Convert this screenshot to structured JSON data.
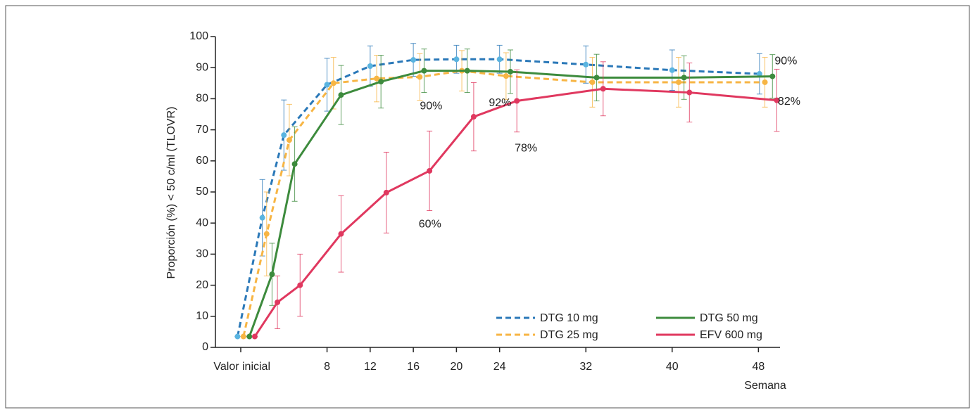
{
  "chart_data": {
    "type": "line",
    "ylabel": "Proporción (%) < 50 c/ml (TLOVR)",
    "xlabel": "Semana",
    "xlim": [
      -2.35,
      50
    ],
    "ylim": [
      0,
      100
    ],
    "xticks": [
      {
        "value": 0,
        "label": "Valor inicial"
      },
      8,
      12,
      16,
      20,
      24,
      32,
      40,
      48
    ],
    "yticks": [
      0,
      10,
      20,
      30,
      40,
      50,
      60,
      70,
      80,
      90,
      100
    ],
    "grid": false,
    "series": [
      {
        "name": "DTG 10 mg",
        "color": "#2a78b8",
        "marker_color": "#5ab4e0",
        "dashed": true,
        "x": [
          -0.3,
          2,
          4,
          8,
          12,
          16,
          20,
          24,
          32,
          40,
          48.1
        ],
        "values": [
          3.5,
          41.7,
          68.3,
          84.5,
          90.5,
          92.5,
          92.7,
          92.7,
          91,
          89.2,
          88
        ],
        "errors": [
          0,
          12.3,
          11.3,
          8.5,
          6.5,
          5.3,
          4.5,
          4.5,
          6,
          6.5,
          6.5
        ]
      },
      {
        "name": "DTG 25 mg",
        "color": "#f7b544",
        "marker_color": "#f7b544",
        "dashed": true,
        "x": [
          0.25,
          2.4,
          4.5,
          8.6,
          12.6,
          16.6,
          20.5,
          24.6,
          32.6,
          40.6,
          48.6
        ],
        "values": [
          3.5,
          36.5,
          66.7,
          85,
          86.5,
          87,
          89,
          87.3,
          85.3,
          85.3,
          85.3
        ],
        "errors": [
          0,
          13.5,
          11.5,
          8.3,
          7.5,
          7.5,
          6.5,
          7.5,
          8,
          8,
          8
        ]
      },
      {
        "name": "DTG 50 mg",
        "color": "#3d8b3d",
        "marker_color": "#3d8b3d",
        "dashed": false,
        "x": [
          0.8,
          2.9,
          5,
          9.3,
          13,
          17,
          21,
          25,
          33,
          41.1,
          49.3
        ],
        "values": [
          3.5,
          23.5,
          59,
          81.2,
          85.5,
          89,
          89,
          88.7,
          86.8,
          86.8,
          87.2
        ],
        "errors": [
          0,
          10,
          12,
          9.5,
          8.5,
          7,
          7,
          7,
          7.5,
          7,
          7
        ]
      },
      {
        "name": "EFV 600 mg",
        "color": "#e0385f",
        "marker_color": "#e0385f",
        "dashed": false,
        "x": [
          1.3,
          3.4,
          5.5,
          9.3,
          13.5,
          17.5,
          21.6,
          25.6,
          33.6,
          41.6,
          49.7
        ],
        "values": [
          3.5,
          14.5,
          20,
          36.5,
          49.8,
          56.8,
          74.2,
          79.3,
          83.2,
          82,
          79.5
        ],
        "errors": [
          0,
          8.5,
          10,
          12.3,
          13,
          12.8,
          11,
          10,
          8.7,
          9.5,
          10
        ]
      }
    ],
    "annotations": [
      {
        "text": "90%",
        "x": 49.5,
        "y": 92
      },
      {
        "text": "82%",
        "x": 49.8,
        "y": 79
      },
      {
        "text": "90%",
        "x": 16.6,
        "y": 77.5
      },
      {
        "text": "92%",
        "x": 23,
        "y": 78.5
      },
      {
        "text": "78%",
        "x": 25.4,
        "y": 64
      },
      {
        "text": "60%",
        "x": 16.5,
        "y": 39.5
      }
    ]
  }
}
